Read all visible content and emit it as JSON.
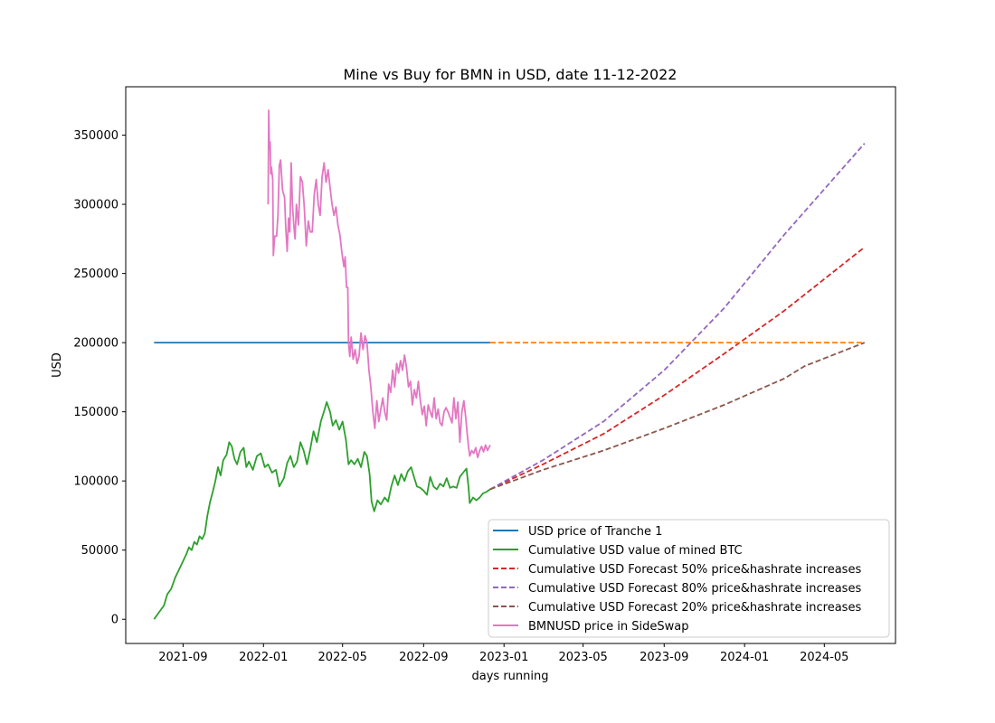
{
  "chart_data": {
    "type": "line",
    "title": "Mine vs Buy for BMN in USD, date 11-12-2022",
    "xlabel": "days running",
    "ylabel": "USD",
    "xlim": [
      "2021-06-06",
      "2024-08-17"
    ],
    "ylim": [
      -17500,
      385000
    ],
    "x_ticks": [
      "2021-09",
      "2022-01",
      "2022-05",
      "2022-09",
      "2023-01",
      "2023-05",
      "2023-09",
      "2024-01",
      "2024-05"
    ],
    "x_tick_dates": [
      "2021-09-01",
      "2022-01-01",
      "2022-05-01",
      "2022-09-01",
      "2023-01-01",
      "2023-05-01",
      "2023-09-01",
      "2024-01-01",
      "2024-05-01"
    ],
    "y_ticks": [
      0,
      50000,
      100000,
      150000,
      200000,
      250000,
      300000,
      350000
    ],
    "grid": false,
    "legend_position": "lower-right",
    "series": [
      {
        "name": "USD price of Tranche 1",
        "color": "#1f77b4",
        "style": "solid",
        "points": [
          [
            "2021-07-19",
            200000
          ],
          [
            "2022-12-11",
            200000
          ]
        ]
      },
      {
        "name": "Cumulative USD value of mined BTC",
        "color": "#2ca02c",
        "style": "solid",
        "points": [
          [
            "2021-07-19",
            0
          ],
          [
            "2021-07-28",
            6000
          ],
          [
            "2021-08-03",
            10000
          ],
          [
            "2021-08-08",
            18000
          ],
          [
            "2021-08-14",
            22000
          ],
          [
            "2021-08-20",
            30000
          ],
          [
            "2021-08-26",
            36000
          ],
          [
            "2021-09-01",
            42000
          ],
          [
            "2021-09-06",
            47000
          ],
          [
            "2021-09-10",
            52000
          ],
          [
            "2021-09-14",
            50000
          ],
          [
            "2021-09-18",
            56000
          ],
          [
            "2021-09-22",
            54000
          ],
          [
            "2021-09-26",
            60000
          ],
          [
            "2021-09-30",
            58000
          ],
          [
            "2021-10-04",
            62000
          ],
          [
            "2021-10-08",
            75000
          ],
          [
            "2021-10-12",
            85000
          ],
          [
            "2021-10-16",
            92000
          ],
          [
            "2021-10-20",
            100000
          ],
          [
            "2021-10-24",
            110000
          ],
          [
            "2021-10-28",
            104000
          ],
          [
            "2021-11-01",
            115000
          ],
          [
            "2021-11-06",
            119000
          ],
          [
            "2021-11-10",
            128000
          ],
          [
            "2021-11-14",
            125000
          ],
          [
            "2021-11-18",
            116000
          ],
          [
            "2021-11-22",
            112000
          ],
          [
            "2021-11-27",
            121000
          ],
          [
            "2021-12-02",
            124000
          ],
          [
            "2021-12-06",
            110000
          ],
          [
            "2021-12-10",
            114000
          ],
          [
            "2021-12-16",
            108000
          ],
          [
            "2021-12-22",
            118000
          ],
          [
            "2021-12-28",
            120000
          ],
          [
            "2022-01-03",
            110000
          ],
          [
            "2022-01-08",
            112000
          ],
          [
            "2022-01-14",
            106000
          ],
          [
            "2022-01-20",
            108000
          ],
          [
            "2022-01-25",
            96000
          ],
          [
            "2022-02-01",
            102000
          ],
          [
            "2022-02-06",
            113000
          ],
          [
            "2022-02-11",
            118000
          ],
          [
            "2022-02-16",
            110000
          ],
          [
            "2022-02-21",
            114000
          ],
          [
            "2022-02-26",
            128000
          ],
          [
            "2022-03-03",
            122000
          ],
          [
            "2022-03-08",
            112000
          ],
          [
            "2022-03-13",
            123000
          ],
          [
            "2022-03-18",
            136000
          ],
          [
            "2022-03-23",
            128000
          ],
          [
            "2022-03-29",
            143000
          ],
          [
            "2022-04-04",
            152000
          ],
          [
            "2022-04-07",
            157000
          ],
          [
            "2022-04-12",
            150000
          ],
          [
            "2022-04-16",
            140000
          ],
          [
            "2022-04-21",
            144000
          ],
          [
            "2022-04-26",
            137000
          ],
          [
            "2022-05-01",
            143000
          ],
          [
            "2022-05-06",
            130000
          ],
          [
            "2022-05-10",
            112000
          ],
          [
            "2022-05-14",
            115000
          ],
          [
            "2022-05-19",
            112000
          ],
          [
            "2022-05-24",
            116000
          ],
          [
            "2022-05-29",
            110000
          ],
          [
            "2022-06-03",
            121000
          ],
          [
            "2022-06-07",
            118000
          ],
          [
            "2022-06-11",
            105000
          ],
          [
            "2022-06-14",
            85000
          ],
          [
            "2022-06-18",
            78000
          ],
          [
            "2022-06-23",
            86000
          ],
          [
            "2022-06-28",
            83000
          ],
          [
            "2022-07-04",
            88000
          ],
          [
            "2022-07-09",
            85000
          ],
          [
            "2022-07-14",
            96000
          ],
          [
            "2022-07-19",
            104000
          ],
          [
            "2022-07-24",
            97000
          ],
          [
            "2022-07-29",
            105000
          ],
          [
            "2022-08-03",
            100000
          ],
          [
            "2022-08-08",
            107000
          ],
          [
            "2022-08-13",
            110000
          ],
          [
            "2022-08-18",
            102000
          ],
          [
            "2022-08-22",
            96000
          ],
          [
            "2022-08-27",
            95000
          ],
          [
            "2022-09-01",
            93000
          ],
          [
            "2022-09-06",
            90000
          ],
          [
            "2022-09-11",
            103000
          ],
          [
            "2022-09-16",
            96000
          ],
          [
            "2022-09-21",
            94000
          ],
          [
            "2022-09-26",
            98000
          ],
          [
            "2022-10-01",
            96000
          ],
          [
            "2022-10-06",
            102000
          ],
          [
            "2022-10-11",
            95000
          ],
          [
            "2022-10-16",
            96000
          ],
          [
            "2022-10-21",
            95000
          ],
          [
            "2022-10-26",
            103000
          ],
          [
            "2022-10-31",
            106000
          ],
          [
            "2022-11-05",
            109000
          ],
          [
            "2022-11-08",
            96000
          ],
          [
            "2022-11-10",
            84000
          ],
          [
            "2022-11-15",
            88000
          ],
          [
            "2022-11-20",
            86000
          ],
          [
            "2022-11-25",
            88000
          ],
          [
            "2022-11-30",
            91000
          ],
          [
            "2022-12-05",
            92000
          ],
          [
            "2022-12-11",
            94000
          ]
        ]
      },
      {
        "name": "Cumulative USD Forecast 50% price&hashrate increases",
        "color": "#d62728",
        "style": "dashed",
        "points": [
          [
            "2022-12-11",
            94000
          ],
          [
            "2023-03-01",
            112000
          ],
          [
            "2023-06-01",
            134000
          ],
          [
            "2023-09-01",
            162000
          ],
          [
            "2023-12-01",
            192000
          ],
          [
            "2024-03-01",
            223000
          ],
          [
            "2024-07-01",
            269000
          ]
        ]
      },
      {
        "name": "Cumulative USD Forecast 80% price&hashrate increases",
        "color": "#9467bd",
        "style": "dashed",
        "points": [
          [
            "2022-12-11",
            94000
          ],
          [
            "2023-03-01",
            115000
          ],
          [
            "2023-06-01",
            143000
          ],
          [
            "2023-09-01",
            180000
          ],
          [
            "2023-12-01",
            225000
          ],
          [
            "2024-03-01",
            278000
          ],
          [
            "2024-07-01",
            344000
          ]
        ]
      },
      {
        "name": "Cumulative USD Forecast 20% price&hashrate increases",
        "color": "#8c564b",
        "style": "dashed",
        "points": [
          [
            "2022-12-11",
            94000
          ],
          [
            "2023-03-01",
            108000
          ],
          [
            "2023-06-01",
            122000
          ],
          [
            "2023-09-01",
            138000
          ],
          [
            "2023-12-01",
            155000
          ],
          [
            "2024-03-01",
            174000
          ],
          [
            "2024-04-01",
            183000
          ],
          [
            "2024-07-01",
            200000
          ]
        ]
      },
      {
        "name": "BMNUSD price in SideSwap",
        "color": "#e377c2",
        "style": "solid",
        "points": [
          [
            "2022-01-08",
            300000
          ],
          [
            "2022-01-09",
            368000
          ],
          [
            "2022-01-10",
            340000
          ],
          [
            "2022-01-11",
            345000
          ],
          [
            "2022-01-12",
            322000
          ],
          [
            "2022-01-13",
            327000
          ],
          [
            "2022-01-15",
            318000
          ],
          [
            "2022-01-16",
            263000
          ],
          [
            "2022-01-18",
            277000
          ],
          [
            "2022-01-21",
            277000
          ],
          [
            "2022-01-23",
            292000
          ],
          [
            "2022-01-25",
            328000
          ],
          [
            "2022-01-27",
            332000
          ],
          [
            "2022-01-30",
            310000
          ],
          [
            "2022-02-02",
            305000
          ],
          [
            "2022-02-04",
            282000
          ],
          [
            "2022-02-06",
            266000
          ],
          [
            "2022-02-08",
            290000
          ],
          [
            "2022-02-10",
            280000
          ],
          [
            "2022-02-12",
            330000
          ],
          [
            "2022-02-14",
            300000
          ],
          [
            "2022-02-16",
            285000
          ],
          [
            "2022-02-18",
            275000
          ],
          [
            "2022-02-20",
            300000
          ],
          [
            "2022-02-23",
            285000
          ],
          [
            "2022-02-26",
            320000
          ],
          [
            "2022-03-01",
            316000
          ],
          [
            "2022-03-04",
            298000
          ],
          [
            "2022-03-07",
            270000
          ],
          [
            "2022-03-10",
            288000
          ],
          [
            "2022-03-13",
            280000
          ],
          [
            "2022-03-16",
            280000
          ],
          [
            "2022-03-19",
            307000
          ],
          [
            "2022-03-22",
            318000
          ],
          [
            "2022-03-25",
            300000
          ],
          [
            "2022-03-28",
            292000
          ],
          [
            "2022-03-31",
            320000
          ],
          [
            "2022-04-03",
            330000
          ],
          [
            "2022-04-06",
            316000
          ],
          [
            "2022-04-09",
            325000
          ],
          [
            "2022-04-12",
            312000
          ],
          [
            "2022-04-15",
            300000
          ],
          [
            "2022-04-18",
            292000
          ],
          [
            "2022-04-21",
            298000
          ],
          [
            "2022-04-24",
            285000
          ],
          [
            "2022-04-27",
            278000
          ],
          [
            "2022-04-30",
            265000
          ],
          [
            "2022-05-03",
            255000
          ],
          [
            "2022-05-05",
            262000
          ],
          [
            "2022-05-07",
            240000
          ],
          [
            "2022-05-09",
            240000
          ],
          [
            "2022-05-10",
            200000
          ],
          [
            "2022-05-12",
            190000
          ],
          [
            "2022-05-14",
            204000
          ],
          [
            "2022-05-17",
            188000
          ],
          [
            "2022-05-20",
            195000
          ],
          [
            "2022-05-23",
            185000
          ],
          [
            "2022-05-26",
            190000
          ],
          [
            "2022-05-29",
            207000
          ],
          [
            "2022-06-01",
            195000
          ],
          [
            "2022-06-04",
            205000
          ],
          [
            "2022-06-07",
            200000
          ],
          [
            "2022-06-10",
            180000
          ],
          [
            "2022-06-13",
            168000
          ],
          [
            "2022-06-16",
            150000
          ],
          [
            "2022-06-19",
            138000
          ],
          [
            "2022-06-22",
            158000
          ],
          [
            "2022-06-25",
            143000
          ],
          [
            "2022-06-28",
            152000
          ],
          [
            "2022-07-01",
            160000
          ],
          [
            "2022-07-04",
            150000
          ],
          [
            "2022-07-07",
            144000
          ],
          [
            "2022-07-10",
            170000
          ],
          [
            "2022-07-13",
            164000
          ],
          [
            "2022-07-16",
            180000
          ],
          [
            "2022-07-19",
            168000
          ],
          [
            "2022-07-22",
            185000
          ],
          [
            "2022-07-25",
            178000
          ],
          [
            "2022-07-28",
            187000
          ],
          [
            "2022-07-31",
            180000
          ],
          [
            "2022-08-03",
            191000
          ],
          [
            "2022-08-06",
            182000
          ],
          [
            "2022-08-09",
            168000
          ],
          [
            "2022-08-12",
            172000
          ],
          [
            "2022-08-15",
            155000
          ],
          [
            "2022-08-18",
            166000
          ],
          [
            "2022-08-21",
            160000
          ],
          [
            "2022-08-24",
            172000
          ],
          [
            "2022-08-27",
            158000
          ],
          [
            "2022-08-30",
            148000
          ],
          [
            "2022-09-02",
            154000
          ],
          [
            "2022-09-05",
            140000
          ],
          [
            "2022-09-08",
            155000
          ],
          [
            "2022-09-11",
            150000
          ],
          [
            "2022-09-14",
            146000
          ],
          [
            "2022-09-17",
            160000
          ],
          [
            "2022-09-20",
            145000
          ],
          [
            "2022-09-23",
            152000
          ],
          [
            "2022-09-26",
            142000
          ],
          [
            "2022-09-29",
            140000
          ],
          [
            "2022-10-02",
            150000
          ],
          [
            "2022-10-05",
            153000
          ],
          [
            "2022-10-08",
            150000
          ],
          [
            "2022-10-11",
            146000
          ],
          [
            "2022-10-14",
            142000
          ],
          [
            "2022-10-17",
            160000
          ],
          [
            "2022-10-20",
            145000
          ],
          [
            "2022-10-23",
            157000
          ],
          [
            "2022-10-26",
            128000
          ],
          [
            "2022-10-29",
            150000
          ],
          [
            "2022-11-01",
            158000
          ],
          [
            "2022-11-04",
            145000
          ],
          [
            "2022-11-06",
            135000
          ],
          [
            "2022-11-08",
            125000
          ],
          [
            "2022-11-10",
            118000
          ],
          [
            "2022-11-13",
            122000
          ],
          [
            "2022-11-16",
            120000
          ],
          [
            "2022-11-19",
            124000
          ],
          [
            "2022-11-22",
            117000
          ],
          [
            "2022-11-25",
            122000
          ],
          [
            "2022-11-28",
            125000
          ],
          [
            "2022-12-01",
            121000
          ],
          [
            "2022-12-04",
            126000
          ],
          [
            "2022-12-07",
            122000
          ],
          [
            "2022-12-11",
            126000
          ]
        ]
      },
      {
        "name": "",
        "color": "#ff7f0e",
        "style": "dashed",
        "points": [
          [
            "2022-12-11",
            200000
          ],
          [
            "2024-07-01",
            200000
          ]
        ]
      }
    ]
  }
}
